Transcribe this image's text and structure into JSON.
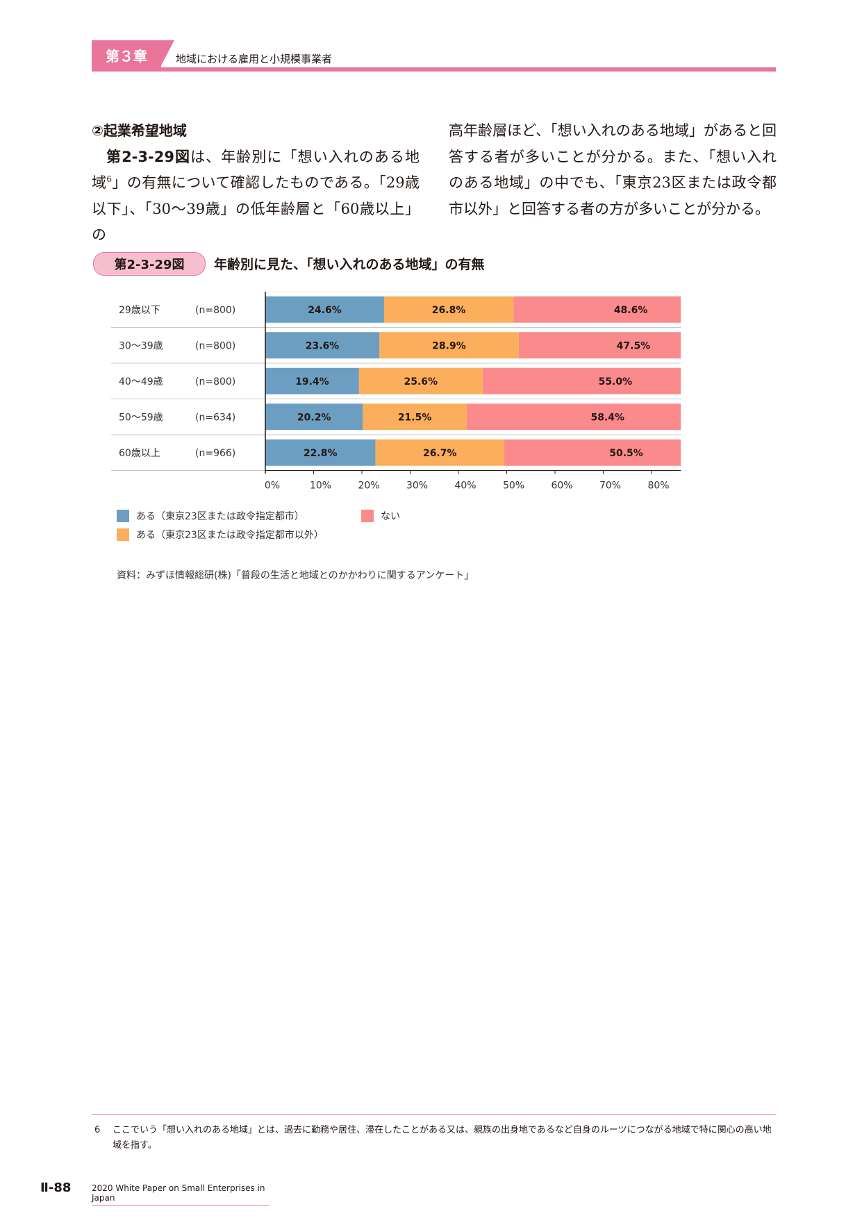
{
  "header": {
    "chapter": "第３章",
    "subtitle": "地域における雇用と小規模事業者"
  },
  "body": {
    "section_heading": "②起業希望地域",
    "para_ref": "第2-3-29図",
    "para_part1": "は、年齢別に「想い入れのある地域",
    "footnote_ref": "6",
    "para_part2": "」の有無について確認したものである。「29歳以下」、「30〜39歳」の低年齢層と「60歳以上」の高年齢層ほど、「想い入れのある地域」があると回答する者が多いことが分かる。また、「想い入れのある地域」の中でも、「東京23区または政令都市以外」と回答する者の方が多いことが分かる。"
  },
  "figure": {
    "number": "第2-3-29図",
    "title": "年齢別に見た、「想い入れのある地域」の有無"
  },
  "chart_data": {
    "type": "bar",
    "orientation": "horizontal",
    "stacked": true,
    "categories": [
      "29歳以下",
      "30〜39歳",
      "40〜49歳",
      "50〜59歳",
      "60歳以上"
    ],
    "sample_sizes": [
      "(n=800)",
      "(n=800)",
      "(n=800)",
      "(n=634)",
      "(n=966)"
    ],
    "series": [
      {
        "name": "ある（東京23区または政令指定都市）",
        "color": "#6c9ec1",
        "values": [
          24.6,
          23.6,
          19.4,
          20.2,
          22.8
        ]
      },
      {
        "name": "ある（東京23区または政令指定都市以外）",
        "color": "#fbae5b",
        "values": [
          26.8,
          28.9,
          25.6,
          21.5,
          26.7
        ]
      },
      {
        "name": "ない",
        "color": "#fb8a8c",
        "values": [
          48.6,
          47.5,
          55.0,
          58.4,
          50.5
        ]
      }
    ],
    "xlim": [
      0,
      100
    ],
    "xticks": [
      "0%",
      "10%",
      "20%",
      "30%",
      "40%",
      "50%",
      "60%",
      "70%",
      "80%",
      "90%",
      "100%"
    ],
    "legend_position": "bottom",
    "source": "資料：みずほ情報総研(株)「普段の生活と地域とのかかわりに関するアンケート」"
  },
  "footnote": {
    "number": "6",
    "text": "ここでいう「想い入れのある地域」とは、過去に勤務や居住、滞在したことがある又は、親族の出身地であるなど自身のルーツにつながる地域で特に関心の高い地域を指す。"
  },
  "footer": {
    "page_number": "Ⅱ-88",
    "publication": "2020 White Paper on Small Enterprises in Japan"
  }
}
